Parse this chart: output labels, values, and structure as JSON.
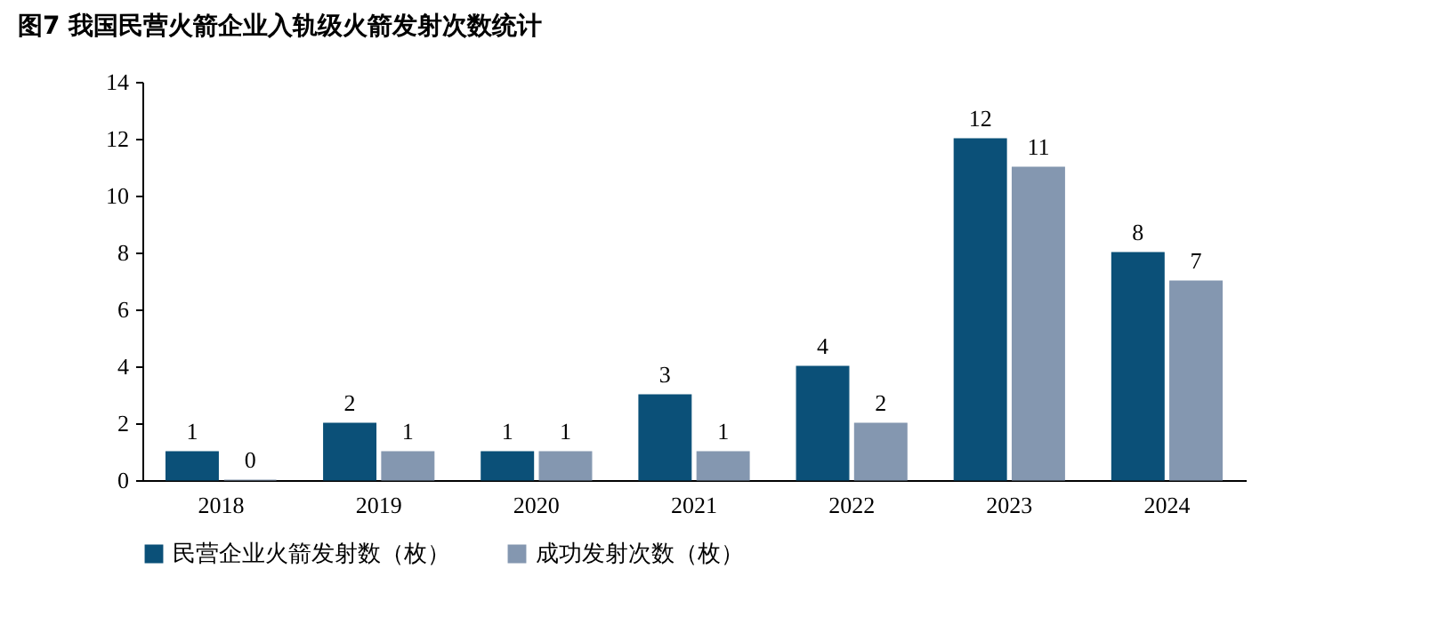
{
  "chart_data": {
    "type": "bar",
    "title": "图7  我国民营火箭企业入轨级火箭发射次数统计",
    "categories": [
      "2018",
      "2019",
      "2020",
      "2021",
      "2022",
      "2023",
      "2024"
    ],
    "series": [
      {
        "name": "民营企业火箭发射数（枚）",
        "color": "#0b5078",
        "values": [
          1,
          2,
          1,
          3,
          4,
          12,
          8
        ]
      },
      {
        "name": "成功发射次数（枚）",
        "color": "#8497b0",
        "values": [
          0,
          1,
          1,
          1,
          2,
          11,
          7
        ]
      }
    ],
    "ylim": [
      0,
      14
    ],
    "yticks": [
      0,
      2,
      4,
      6,
      8,
      10,
      12,
      14
    ],
    "data_labels": true,
    "legend": "bottom",
    "grid": false
  }
}
